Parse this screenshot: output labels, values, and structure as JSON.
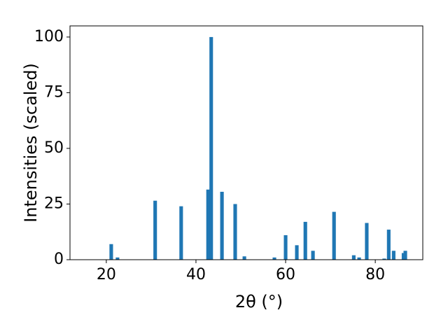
{
  "chart_data": {
    "type": "bar",
    "xlabel": "2θ (°)",
    "ylabel": "Intensities (scaled)",
    "x": [
      21.1,
      22.5,
      30.9,
      36.7,
      42.7,
      43.4,
      45.8,
      48.75,
      50.8,
      57.5,
      60.0,
      62.5,
      64.4,
      66.1,
      70.8,
      75.2,
      76.4,
      78.1,
      82.0,
      83.0,
      84.1,
      86.3,
      86.7
    ],
    "values": [
      7,
      1,
      26.5,
      24,
      31.5,
      100,
      30.5,
      25,
      1.5,
      1,
      11,
      6.5,
      17,
      4,
      21.5,
      2,
      1,
      16.5,
      0.5,
      13.5,
      4,
      3,
      4
    ],
    "color": "#1f77b4",
    "xlim": [
      11.9,
      90.6
    ],
    "xticks": [
      20,
      40,
      60,
      80
    ],
    "ylim": [
      0,
      105
    ],
    "yticks": [
      0,
      25,
      50,
      75,
      100
    ]
  }
}
